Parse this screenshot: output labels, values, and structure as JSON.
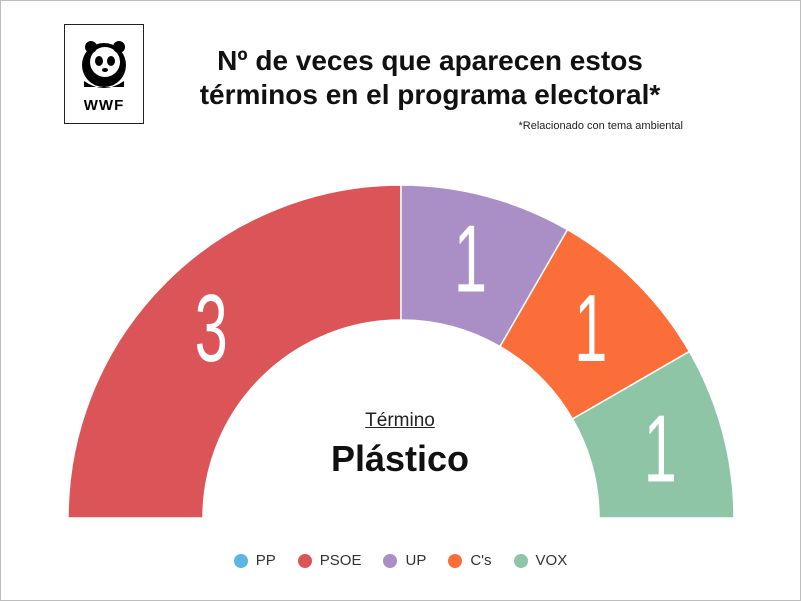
{
  "header": {
    "logo_text": "WWF",
    "title_line1": "Nº de veces que aparecen estos",
    "title_line2": "términos en el programa electoral*",
    "subtitle": "*Relacionado con tema ambiental"
  },
  "center": {
    "label": "Término",
    "value": "Plástico"
  },
  "colors": {
    "PP": "#5bb5e5",
    "PSOE": "#db5457",
    "UP": "#a98fc6",
    "Cs": "#fb6e3a",
    "VOX": "#8ec5a6"
  },
  "chart_data": {
    "type": "pie",
    "variant": "semicircle-donut",
    "categories": [
      "PP",
      "PSOE",
      "UP",
      "C's",
      "VOX"
    ],
    "values": [
      0,
      3,
      1,
      1,
      1
    ],
    "colors": [
      "#5bb5e5",
      "#db5457",
      "#a98fc6",
      "#fb6e3a",
      "#8ec5a6"
    ],
    "data_labels": [
      "",
      "3",
      "1",
      "1",
      "1"
    ],
    "legend_position": "bottom"
  }
}
